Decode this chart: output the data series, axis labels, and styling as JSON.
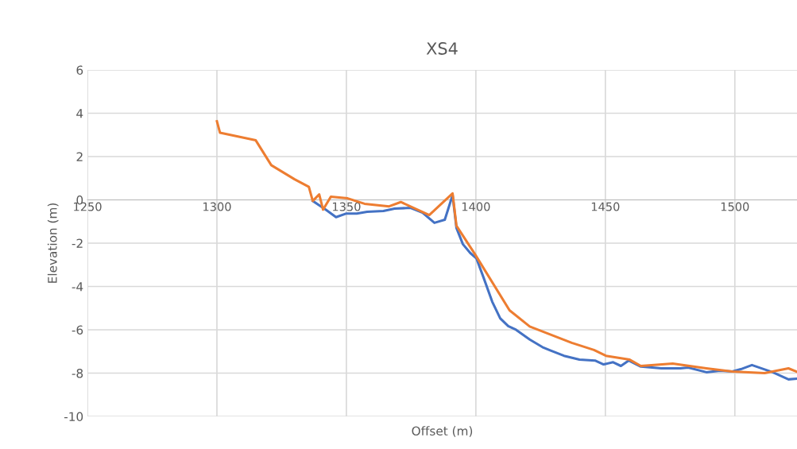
{
  "chart_data": {
    "type": "line",
    "title": "XS4",
    "xlabel": "Offset (m)",
    "ylabel": "Elevation (m)",
    "xlim": [
      1250,
      1524
    ],
    "xticks": [
      1250,
      1300,
      1350,
      1400,
      1450,
      1500
    ],
    "ylim": [
      -10,
      6
    ],
    "yticks": [
      -10,
      -8,
      -6,
      -4,
      -2,
      0,
      2,
      4,
      6
    ],
    "grid": true,
    "marker": "none",
    "line_style": "solid",
    "series": [
      {
        "color": "#4472c4",
        "x": [
          1337,
          1342,
          1346,
          1350,
          1354,
          1358,
          1364.3,
          1368.6,
          1374.8,
          1379.4,
          1384,
          1388,
          1391,
          1392.5,
          1395,
          1397.8,
          1400.2,
          1403,
          1406.3,
          1409.4,
          1412.5,
          1415.5,
          1420.8,
          1425.7,
          1428.7,
          1434,
          1440,
          1446,
          1449.3,
          1453,
          1456,
          1459,
          1463.7,
          1471.6,
          1479,
          1482,
          1489,
          1494.3,
          1499,
          1502.3,
          1506.6,
          1514.6,
          1520.7,
          1523.8
        ],
        "values": [
          -0.05,
          -0.45,
          -0.8,
          -0.63,
          -0.63,
          -0.55,
          -0.51,
          -0.4,
          -0.37,
          -0.59,
          -1.06,
          -0.92,
          0.22,
          -1.3,
          -2.05,
          -2.45,
          -2.7,
          -3.6,
          -4.7,
          -5.47,
          -5.83,
          -6.0,
          -6.45,
          -6.8,
          -6.95,
          -7.2,
          -7.38,
          -7.42,
          -7.6,
          -7.5,
          -7.67,
          -7.42,
          -7.7,
          -7.78,
          -7.78,
          -7.74,
          -7.96,
          -7.89,
          -7.93,
          -7.82,
          -7.63,
          -7.96,
          -8.29,
          -8.26
        ]
      },
      {
        "color": "#ed7d31",
        "x": [
          1300,
          1301.2,
          1315,
          1321,
          1330,
          1335.5,
          1337,
          1339.5,
          1341,
          1344,
          1350.5,
          1357,
          1366.5,
          1371,
          1382,
          1391,
          1392.5,
          1399.6,
          1413,
          1420.8,
          1437,
          1445.6,
          1450.2,
          1459.4,
          1463.7,
          1476,
          1489,
          1499,
          1511.5,
          1520.7,
          1523.8
        ],
        "values": [
          3.63,
          3.1,
          2.75,
          1.6,
          0.95,
          0.6,
          -0.05,
          0.25,
          -0.45,
          0.15,
          0.07,
          -0.18,
          -0.3,
          -0.1,
          -0.7,
          0.3,
          -1.2,
          -2.5,
          -5.1,
          -5.85,
          -6.6,
          -6.93,
          -7.2,
          -7.38,
          -7.67,
          -7.56,
          -7.78,
          -7.93,
          -8.0,
          -7.78,
          -7.93
        ]
      }
    ]
  }
}
